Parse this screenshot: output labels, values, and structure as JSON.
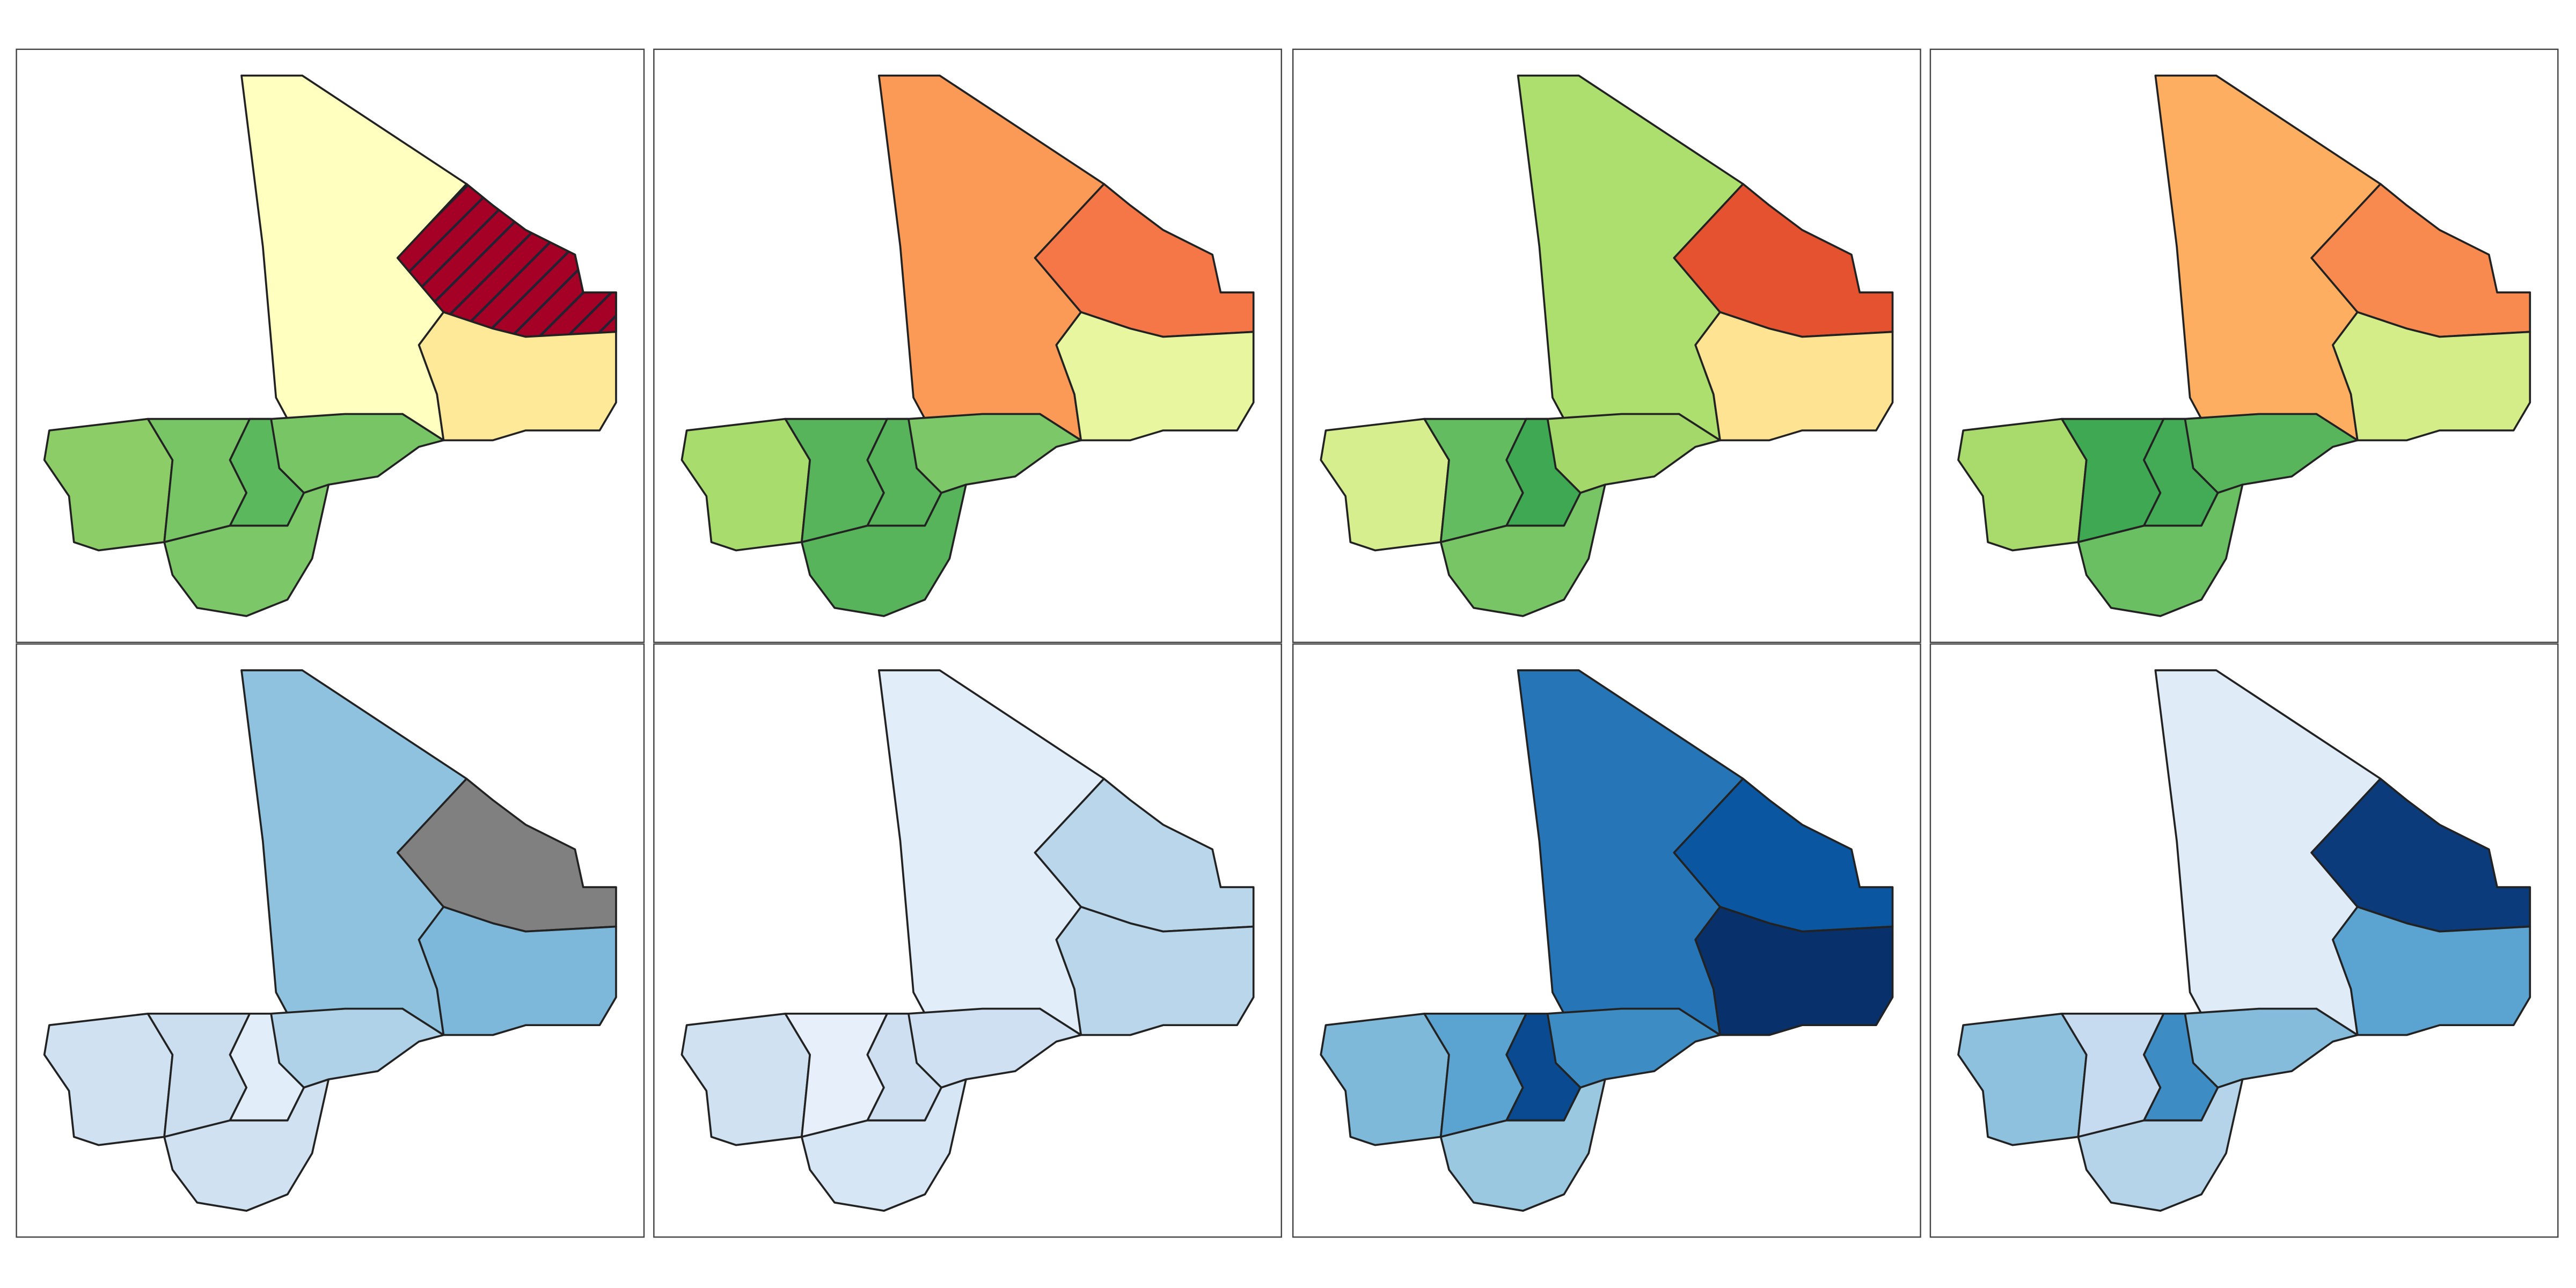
{
  "panels": [
    {
      "regions": [
        {
          "fill": "#ffffbf"
        },
        {
          "fill": "#a50026",
          "hatch": true
        },
        {
          "fill": "#fee999"
        },
        {
          "fill": "#78c565"
        },
        {
          "fill": "#8ccd67"
        },
        {
          "fill": "#78c565"
        },
        {
          "fill": "#5cb85c"
        },
        {
          "fill": "#7cc767"
        }
      ]
    },
    {
      "regions": [
        {
          "fill": "#fb9a57"
        },
        {
          "fill": "#f57748"
        },
        {
          "fill": "#e8f6a0"
        },
        {
          "fill": "#7cc767"
        },
        {
          "fill": "#a8dc6d"
        },
        {
          "fill": "#57b45b"
        },
        {
          "fill": "#57b45b"
        },
        {
          "fill": "#57b45b"
        }
      ]
    },
    {
      "regions": [
        {
          "fill": "#addf6f"
        },
        {
          "fill": "#e5522f"
        },
        {
          "fill": "#fee392"
        },
        {
          "fill": "#a5d86a"
        },
        {
          "fill": "#d7ee8e"
        },
        {
          "fill": "#63bc5f"
        },
        {
          "fill": "#3fa853"
        },
        {
          "fill": "#78c565"
        }
      ]
    },
    {
      "regions": [
        {
          "fill": "#fdae61"
        },
        {
          "fill": "#f88a50"
        },
        {
          "fill": "#d5ed88"
        },
        {
          "fill": "#58b55c"
        },
        {
          "fill": "#a9db6c"
        },
        {
          "fill": "#3fa853"
        },
        {
          "fill": "#43aa55"
        },
        {
          "fill": "#6abf62"
        }
      ]
    },
    {
      "regions": [
        {
          "fill": "#8fc2de"
        },
        {
          "fill": "#808080"
        },
        {
          "fill": "#7db8da"
        },
        {
          "fill": "#b0d2e8"
        },
        {
          "fill": "#d0e1f2"
        },
        {
          "fill": "#cadef0"
        },
        {
          "fill": "#e1edf8"
        },
        {
          "fill": "#d0e1f2"
        }
      ]
    },
    {
      "regions": [
        {
          "fill": "#e1edf8"
        },
        {
          "fill": "#bad6eb"
        },
        {
          "fill": "#bad6eb"
        },
        {
          "fill": "#cee0f2"
        },
        {
          "fill": "#d0e1f2"
        },
        {
          "fill": "#e7f0fa"
        },
        {
          "fill": "#cddff1"
        },
        {
          "fill": "#d6e6f4"
        }
      ]
    },
    {
      "regions": [
        {
          "fill": "#2575b7"
        },
        {
          "fill": "#0a56a0"
        },
        {
          "fill": "#08306b"
        },
        {
          "fill": "#3d8dc4"
        },
        {
          "fill": "#7fb9da"
        },
        {
          "fill": "#5ba3d0"
        },
        {
          "fill": "#0a4a90"
        },
        {
          "fill": "#9ac8e0"
        }
      ]
    },
    {
      "regions": [
        {
          "fill": "#dfebf7"
        },
        {
          "fill": "#0b3b7a"
        },
        {
          "fill": "#5ba3d0"
        },
        {
          "fill": "#85bcdc"
        },
        {
          "fill": "#8dc1dd"
        },
        {
          "fill": "#c6dbef"
        },
        {
          "fill": "#3d8dc4"
        },
        {
          "fill": "#b5d4e9"
        }
      ]
    }
  ]
}
